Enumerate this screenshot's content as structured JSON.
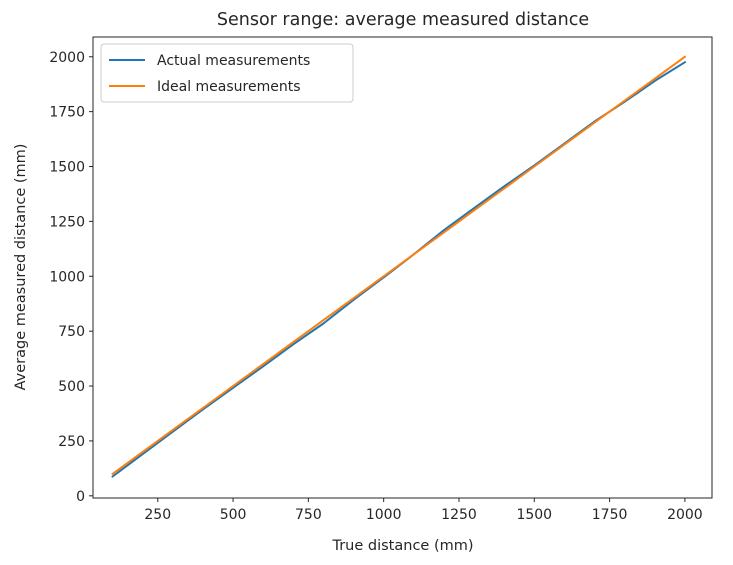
{
  "chart_data": {
    "type": "line",
    "title": "Sensor range: average measured distance",
    "xlabel": "True distance (mm)",
    "ylabel": "Average measured distance (mm)",
    "xlim": [
      35,
      2090
    ],
    "ylim": [
      -10,
      2090
    ],
    "xticks": [
      250,
      500,
      750,
      1000,
      1250,
      1500,
      1750,
      2000
    ],
    "yticks": [
      0,
      250,
      500,
      750,
      1000,
      1250,
      1500,
      1750,
      2000
    ],
    "grid": false,
    "legend_position": "upper left",
    "x": [
      100,
      200,
      300,
      400,
      500,
      600,
      700,
      800,
      900,
      1000,
      1100,
      1200,
      1300,
      1400,
      1500,
      1600,
      1700,
      1800,
      1900,
      2000
    ],
    "series": [
      {
        "name": "Actual measurements",
        "color": "#1f77b4",
        "values": [
          88,
          190,
          292,
          393,
          492,
          590,
          690,
          785,
          893,
          995,
          1100,
          1210,
          1310,
          1410,
          1505,
          1605,
          1705,
          1795,
          1890,
          1975
        ]
      },
      {
        "name": "Ideal measurements",
        "color": "#ff7f0e",
        "values": [
          100,
          200,
          300,
          400,
          500,
          600,
          700,
          800,
          900,
          1000,
          1100,
          1200,
          1300,
          1400,
          1500,
          1600,
          1700,
          1800,
          1900,
          2000
        ]
      }
    ]
  },
  "legend": {
    "items": [
      {
        "label": "Actual measurements",
        "color": "#1f77b4"
      },
      {
        "label": "Ideal measurements",
        "color": "#ff7f0e"
      }
    ]
  }
}
